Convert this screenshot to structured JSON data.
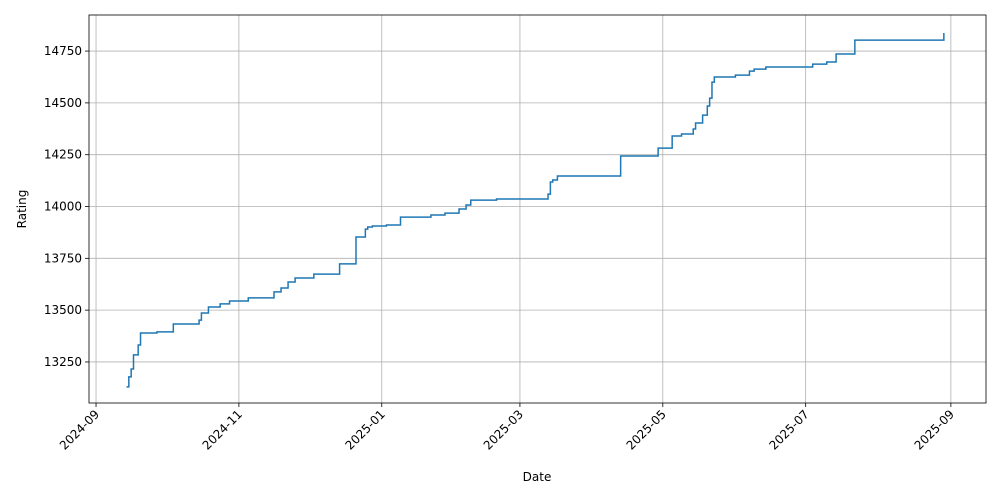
{
  "chart_data": {
    "type": "step",
    "x_label": "Date",
    "y_label": "Rating",
    "color": "#1f77b4",
    "grid": true,
    "xlim": [
      "2024-08-29",
      "2025-09-16"
    ],
    "xticks": [
      {
        "value": "2024-09-01",
        "label": "2024-09"
      },
      {
        "value": "2024-11-01",
        "label": "2024-11"
      },
      {
        "value": "2025-01-01",
        "label": "2025-01"
      },
      {
        "value": "2025-03-01",
        "label": "2025-03"
      },
      {
        "value": "2025-05-01",
        "label": "2025-05"
      },
      {
        "value": "2025-07-01",
        "label": "2025-07"
      },
      {
        "value": "2025-09-01",
        "label": "2025-09"
      }
    ],
    "ylim": [
      13052,
      14924
    ],
    "yticks": [
      13250,
      13500,
      13750,
      14000,
      14250,
      14500,
      14750
    ],
    "x": [
      "2024-09-14",
      "2024-09-15",
      "2024-09-16",
      "2024-09-17",
      "2024-09-19",
      "2024-09-20",
      "2024-09-27",
      "2024-10-04",
      "2024-10-15",
      "2024-10-16",
      "2024-10-19",
      "2024-10-24",
      "2024-10-28",
      "2024-11-05",
      "2024-11-16",
      "2024-11-19",
      "2024-11-22",
      "2024-11-25",
      "2024-12-03",
      "2024-12-14",
      "2024-12-21",
      "2024-12-25",
      "2024-12-26",
      "2024-12-28",
      "2025-01-03",
      "2025-01-09",
      "2025-01-22",
      "2025-01-28",
      "2025-02-03",
      "2025-02-06",
      "2025-02-08",
      "2025-02-19",
      "2025-03-13",
      "2025-03-14",
      "2025-03-15",
      "2025-03-17",
      "2025-04-13",
      "2025-04-29",
      "2025-05-05",
      "2025-05-09",
      "2025-05-14",
      "2025-05-15",
      "2025-05-18",
      "2025-05-20",
      "2025-05-21",
      "2025-05-22",
      "2025-05-23",
      "2025-06-01",
      "2025-06-07",
      "2025-06-09",
      "2025-06-14",
      "2025-07-04",
      "2025-07-10",
      "2025-07-14",
      "2025-07-22",
      "2025-08-29"
    ],
    "values": [
      13130,
      13178,
      13216,
      13284,
      13332,
      13390,
      13395,
      13433,
      13452,
      13486,
      13515,
      13530,
      13544,
      13559,
      13588,
      13607,
      13636,
      13655,
      13674,
      13723,
      13853,
      13891,
      13901,
      13906,
      13911,
      13949,
      13959,
      13968,
      13988,
      14007,
      14031,
      14036,
      14060,
      14118,
      14128,
      14147,
      14244,
      14282,
      14340,
      14350,
      14374,
      14403,
      14441,
      14485,
      14523,
      14600,
      14625,
      14634,
      14653,
      14663,
      14673,
      14687,
      14697,
      14736,
      14803,
      14837
    ]
  }
}
